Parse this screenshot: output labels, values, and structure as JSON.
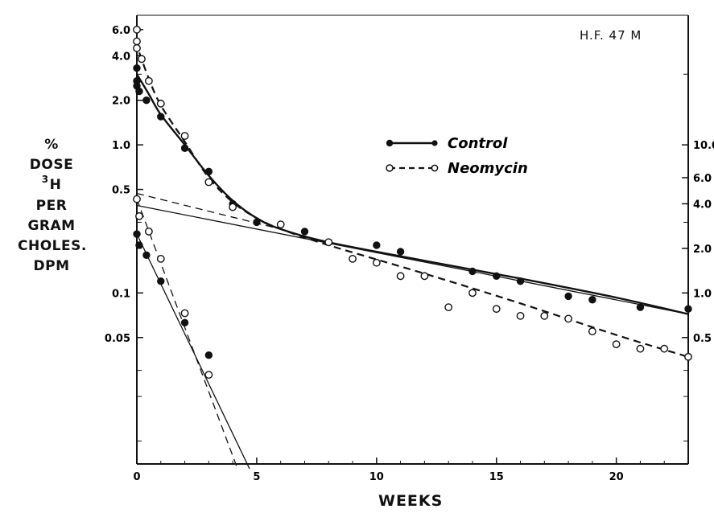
{
  "chart_data": {
    "type": "scatter",
    "title": "",
    "annotation": "H.F.  47  M",
    "xlabel": "WEEKS",
    "ylabel_lines": [
      "%",
      "DOSE",
      "H",
      "PER",
      "GRAM",
      "CHOLES.",
      "DPM"
    ],
    "ylabel_superscript": "3",
    "y_scale": "log",
    "xlim": [
      0,
      23
    ],
    "ylim": [
      0.007,
      7.5
    ],
    "x_ticks": [
      "0",
      "5",
      "10",
      "15",
      "20"
    ],
    "x_tick_values": [
      0,
      5,
      10,
      15,
      20
    ],
    "left_ticks": [
      {
        "label": "6.0",
        "value": 6.0
      },
      {
        "label": "4.0",
        "value": 4.0
      },
      {
        "label": "2.0",
        "value": 2.0
      },
      {
        "label": "1.0",
        "value": 1.0
      },
      {
        "label": "0.5",
        "value": 0.5
      },
      {
        "label": "0.1",
        "value": 0.1
      },
      {
        "label": "0.05",
        "value": 0.05
      }
    ],
    "right_ticks": [
      {
        "label": "10.0",
        "value": 1.0
      },
      {
        "label": "6.0",
        "value": 0.6
      },
      {
        "label": "4.0",
        "value": 0.4
      },
      {
        "label": "2.0",
        "value": 0.2
      },
      {
        "label": "1.0",
        "value": 0.1
      },
      {
        "label": "0.5",
        "value": 0.05
      }
    ],
    "legend_position": "upper-center",
    "series": [
      {
        "name": "Control",
        "marker": "filled-circle",
        "line_style": "solid",
        "x": [
          0,
          0,
          0,
          0.1,
          0.4,
          1,
          2,
          3,
          4,
          5,
          7,
          10,
          11,
          14,
          15,
          16,
          18,
          19,
          21,
          23
        ],
        "y": [
          3.3,
          2.7,
          2.5,
          2.3,
          2.0,
          1.55,
          0.95,
          0.66,
          0.4,
          0.3,
          0.26,
          0.21,
          0.19,
          0.14,
          0.13,
          0.12,
          0.095,
          0.09,
          0.08,
          0.078
        ]
      },
      {
        "name": "Neomycin",
        "marker": "open-circle",
        "line_style": "dashed",
        "x": [
          0,
          0,
          0,
          0.2,
          0.5,
          1,
          2,
          3,
          4,
          6,
          8,
          9,
          10,
          11,
          12,
          13,
          14,
          15,
          16,
          17,
          18,
          19,
          20,
          21,
          22,
          23
        ],
        "y": [
          6.0,
          5.0,
          4.5,
          3.8,
          2.7,
          1.9,
          1.15,
          0.56,
          0.38,
          0.29,
          0.22,
          0.17,
          0.16,
          0.13,
          0.13,
          0.08,
          0.1,
          0.078,
          0.07,
          0.07,
          0.067,
          0.055,
          0.045,
          0.042,
          0.042,
          0.037
        ]
      },
      {
        "name": "",
        "marker": "filled-circle",
        "line_style": "solid",
        "axis": "right",
        "x": [
          0,
          0.1,
          0.4,
          1,
          2,
          3
        ],
        "y": [
          0.25,
          0.21,
          0.18,
          0.12,
          0.063,
          0.038
        ]
      },
      {
        "name": "",
        "marker": "open-circle",
        "line_style": "dashed",
        "axis": "right",
        "x": [
          0,
          0.1,
          0.5,
          1,
          2,
          3
        ],
        "y": [
          0.43,
          0.33,
          0.26,
          0.17,
          0.073,
          0.028
        ]
      }
    ],
    "fit_lines": [
      {
        "style": "solid-thin",
        "x": [
          0,
          23
        ],
        "y": [
          0.39,
          0.072
        ]
      },
      {
        "style": "dashed-thin",
        "x": [
          0,
          6
        ],
        "y": [
          0.47,
          0.27
        ]
      },
      {
        "style": "solid-thin",
        "x": [
          0,
          4.7
        ],
        "y": [
          0.25,
          0.0065
        ]
      },
      {
        "style": "dashed-thin",
        "x": [
          0,
          4.2
        ],
        "y": [
          0.43,
          0.0065
        ]
      }
    ]
  }
}
